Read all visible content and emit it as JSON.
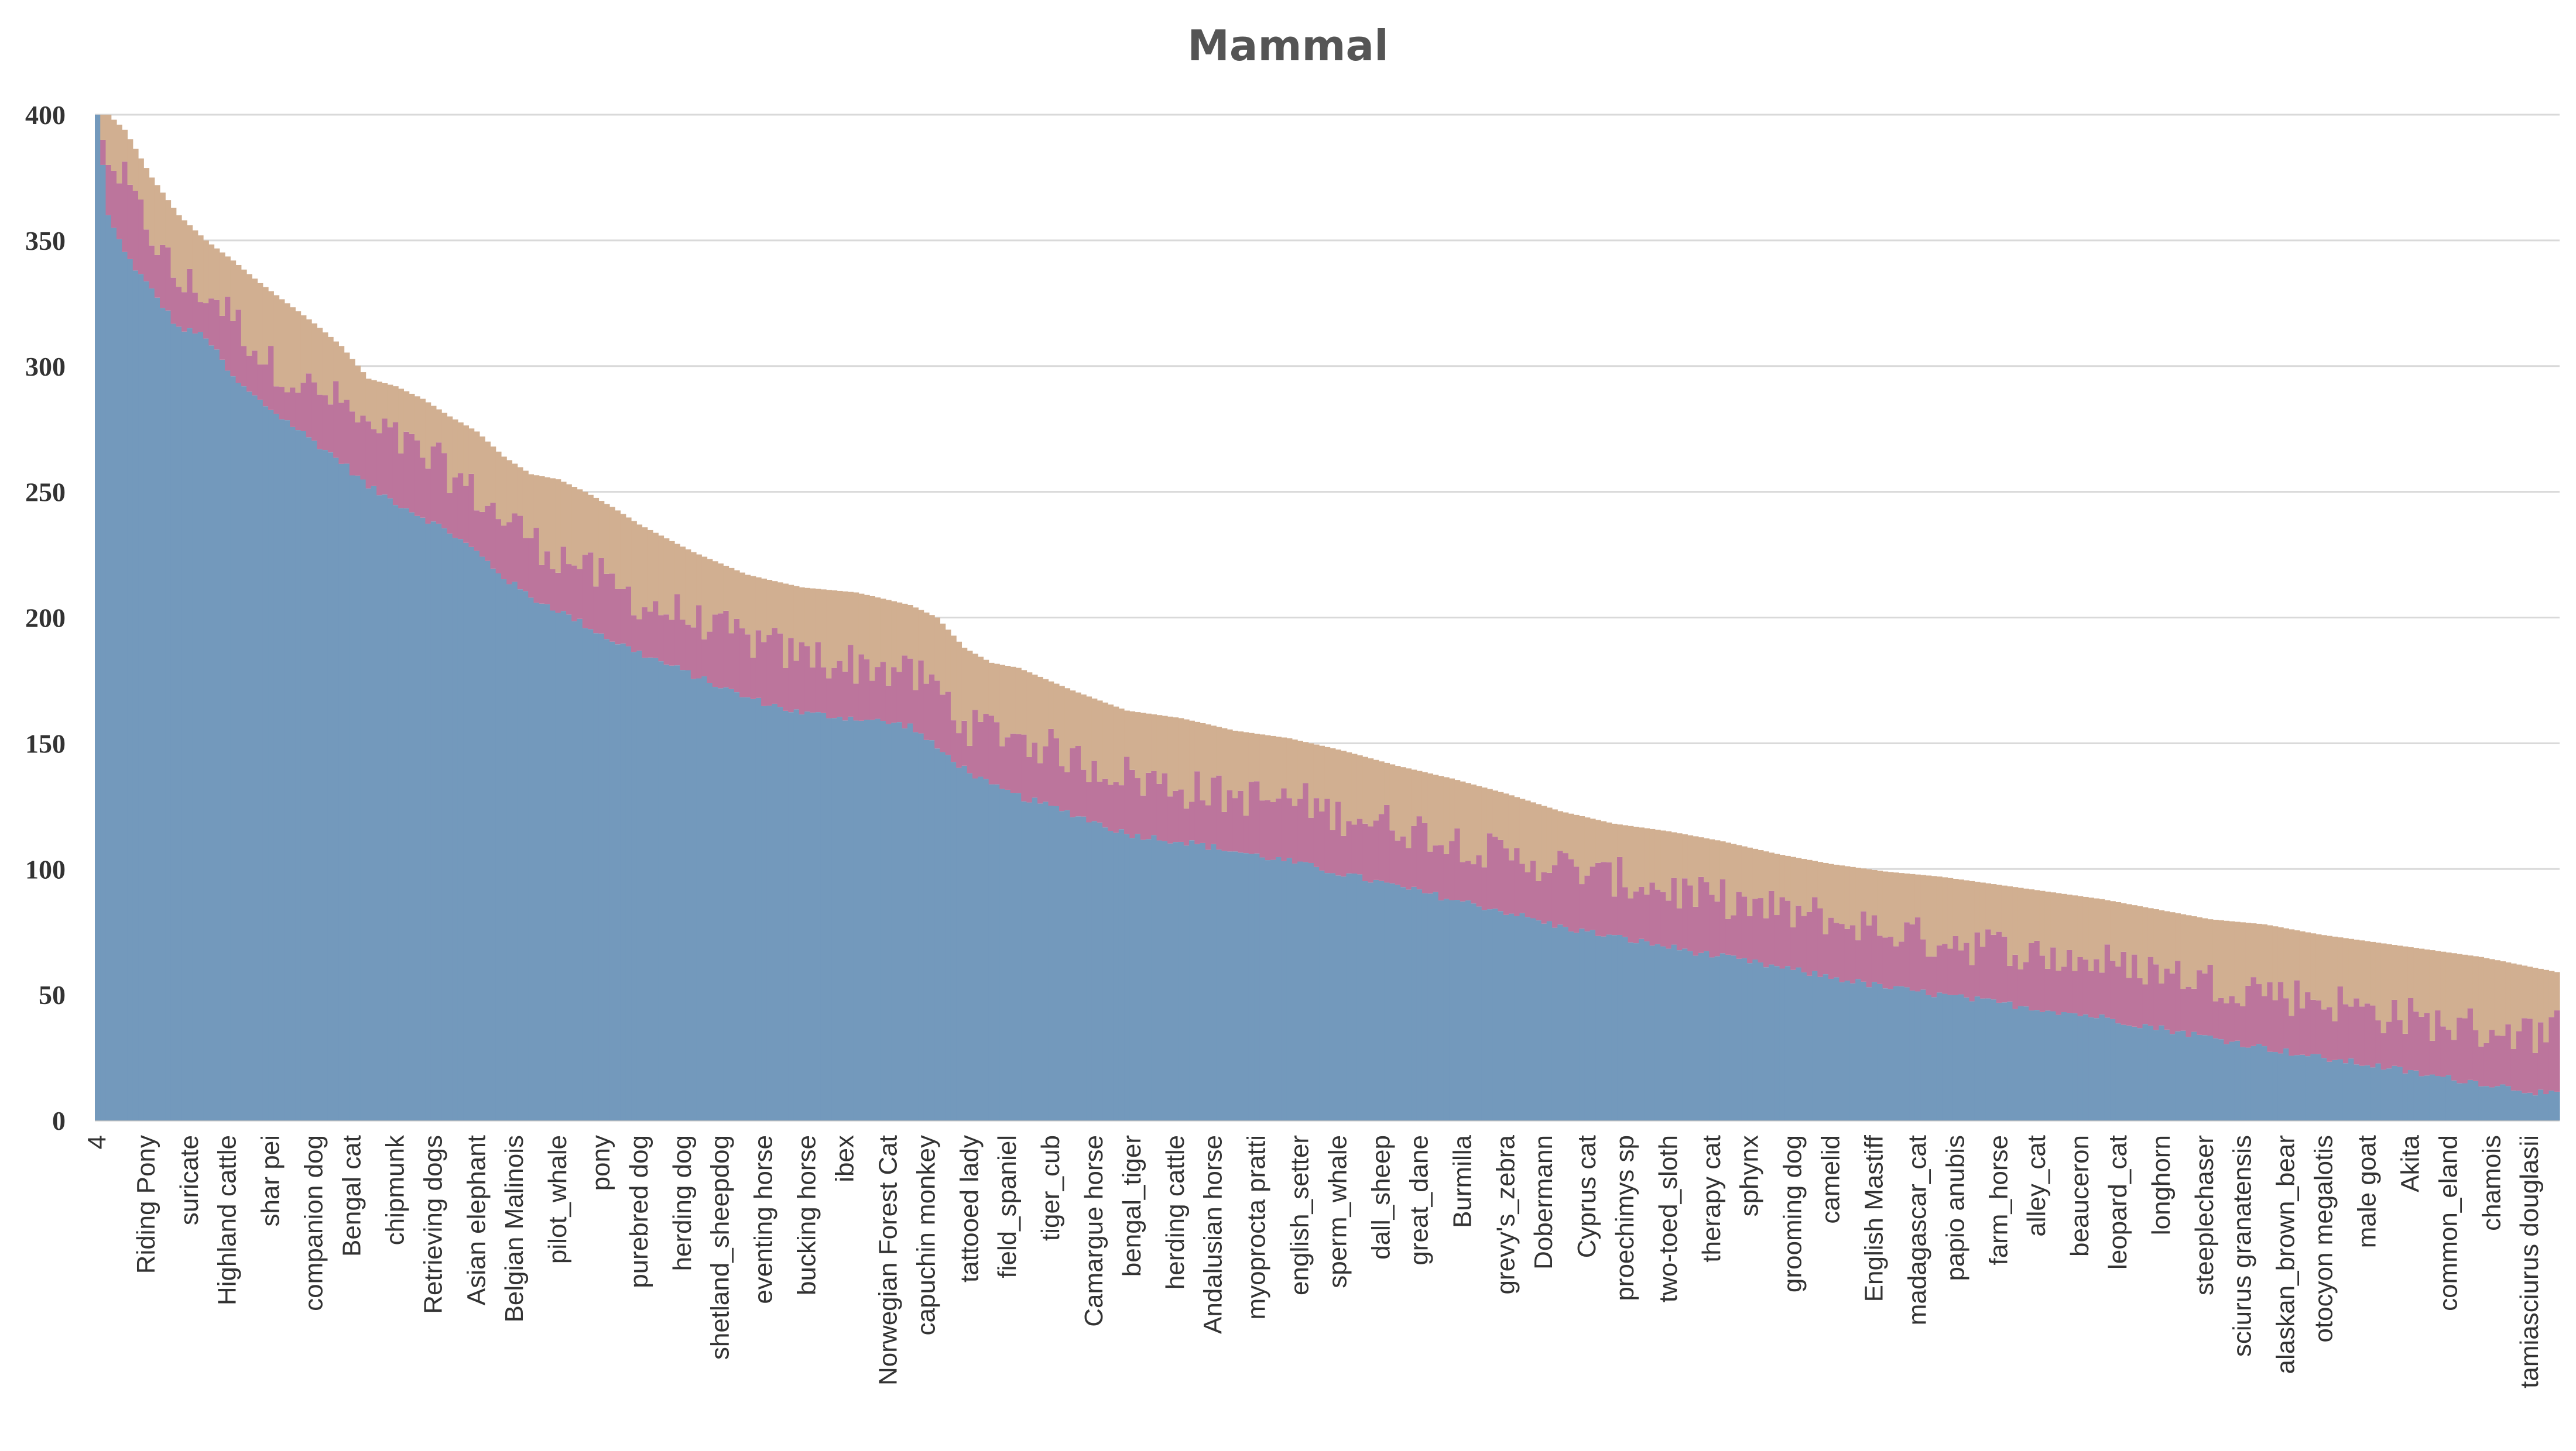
{
  "chart_data": {
    "type": "bar",
    "stacked": true,
    "title": "Mammal",
    "xlabel": "",
    "ylabel": "",
    "ylim": [
      0,
      400
    ],
    "yticks": [
      0,
      50,
      100,
      150,
      200,
      250,
      300,
      350,
      400
    ],
    "grid": true,
    "legend": "none",
    "series_colors": [
      "#7399BC",
      "#BC759C",
      "#D1AF91"
    ],
    "category_count": 455,
    "visible_labels": [
      {
        "index": 0,
        "label": "4"
      },
      {
        "index": 9,
        "label": "Riding Pony"
      },
      {
        "index": 17,
        "label": "suricate"
      },
      {
        "index": 24,
        "label": "Highland cattle"
      },
      {
        "index": 32,
        "label": "shar pei"
      },
      {
        "index": 40,
        "label": "companion dog"
      },
      {
        "index": 47,
        "label": "Bengal cat"
      },
      {
        "index": 55,
        "label": "chipmunk"
      },
      {
        "index": 62,
        "label": "Retrieving dogs"
      },
      {
        "index": 70,
        "label": "Asian elephant"
      },
      {
        "index": 77,
        "label": "Belgian Malinois"
      },
      {
        "index": 85,
        "label": "pilot_whale"
      },
      {
        "index": 93,
        "label": "pony"
      },
      {
        "index": 100,
        "label": "purebred dog"
      },
      {
        "index": 108,
        "label": "herding dog"
      },
      {
        "index": 115,
        "label": "shetland_sheepdog"
      },
      {
        "index": 123,
        "label": "eventing horse"
      },
      {
        "index": 131,
        "label": "bucking horse"
      },
      {
        "index": 138,
        "label": "ibex"
      },
      {
        "index": 146,
        "label": "Norwegian Forest Cat"
      },
      {
        "index": 153,
        "label": "capuchin monkey"
      },
      {
        "index": 161,
        "label": "tattooed lady"
      },
      {
        "index": 168,
        "label": "field_spaniel"
      },
      {
        "index": 176,
        "label": "tiger_cub"
      },
      {
        "index": 184,
        "label": "Camargue horse"
      },
      {
        "index": 191,
        "label": "bengal_tiger"
      },
      {
        "index": 199,
        "label": "herding cattle"
      },
      {
        "index": 206,
        "label": "Andalusian horse"
      },
      {
        "index": 214,
        "label": "myoprocta pratti"
      },
      {
        "index": 222,
        "label": "english_setter"
      },
      {
        "index": 229,
        "label": "sperm_whale"
      },
      {
        "index": 237,
        "label": "dall_sheep"
      },
      {
        "index": 244,
        "label": "great_dane"
      },
      {
        "index": 252,
        "label": "Burmilla"
      },
      {
        "index": 260,
        "label": "grevy's_zebra"
      },
      {
        "index": 267,
        "label": "Dobermann"
      },
      {
        "index": 275,
        "label": "Cyprus cat"
      },
      {
        "index": 282,
        "label": "proechimys sp"
      },
      {
        "index": 290,
        "label": "two-toed_sloth"
      },
      {
        "index": 298,
        "label": "therapy cat"
      },
      {
        "index": 305,
        "label": "sphynx"
      },
      {
        "index": 313,
        "label": "grooming dog"
      },
      {
        "index": 320,
        "label": "camelid"
      },
      {
        "index": 328,
        "label": "English Mastiff"
      },
      {
        "index": 336,
        "label": "madagascar_cat"
      },
      {
        "index": 343,
        "label": "papio anubis"
      },
      {
        "index": 351,
        "label": "farm_horse"
      },
      {
        "index": 358,
        "label": "alley_cat"
      },
      {
        "index": 366,
        "label": "beauceron"
      },
      {
        "index": 373,
        "label": "leopard_cat"
      },
      {
        "index": 381,
        "label": "longhorn"
      },
      {
        "index": 389,
        "label": "steeplechaser"
      },
      {
        "index": 396,
        "label": "sciurus granatensis"
      },
      {
        "index": 404,
        "label": "alaskan_brown_bear"
      },
      {
        "index": 411,
        "label": "otocyon megalotis"
      },
      {
        "index": 419,
        "label": "male goat"
      },
      {
        "index": 427,
        "label": "Akita"
      },
      {
        "index": 434,
        "label": "common_eland"
      },
      {
        "index": 442,
        "label": "chamois"
      },
      {
        "index": 449,
        "label": "tamiasciurus douglasii"
      }
    ],
    "profile": {
      "index": [
        0,
        2,
        5,
        10,
        15,
        20,
        25,
        30,
        40,
        45,
        50,
        55,
        60,
        65,
        70,
        75,
        80,
        85,
        90,
        95,
        100,
        110,
        120,
        130,
        140,
        150,
        155,
        160,
        165,
        170,
        180,
        190,
        200,
        210,
        220,
        230,
        240,
        250,
        260,
        270,
        280,
        290,
        300,
        310,
        320,
        330,
        340,
        350,
        360,
        370,
        380,
        390,
        400,
        410,
        420,
        430,
        440,
        454
      ],
      "total": [
        400,
        400,
        394,
        375,
        360,
        350,
        342,
        333,
        317,
        308,
        295,
        292,
        287,
        280,
        274,
        264,
        257,
        255,
        250,
        244,
        237,
        226,
        217,
        212,
        210,
        205,
        200,
        188,
        182,
        180,
        171,
        163,
        160,
        155,
        152,
        147,
        141,
        136,
        130,
        123,
        118,
        115,
        111,
        106,
        102,
        99,
        97,
        94,
        91,
        88,
        84,
        80,
        78,
        74,
        71,
        68,
        65,
        59
      ],
      "series1": [
        400,
        360,
        345,
        330,
        315,
        312,
        295,
        286,
        270,
        262,
        252,
        246,
        240,
        234,
        226,
        216,
        208,
        203,
        197,
        191,
        186,
        177,
        168,
        162,
        160,
        157,
        148,
        140,
        133,
        129,
        122,
        114,
        111,
        107,
        103,
        98,
        93,
        88,
        83,
        77,
        73,
        69,
        65,
        61,
        57,
        53,
        50,
        47,
        44,
        41,
        37,
        33,
        29,
        25,
        22,
        18,
        15,
        10
      ],
      "series2": [
        0,
        20,
        28,
        22,
        18,
        17,
        25,
        18,
        20,
        24,
        22,
        26,
        25,
        24,
        22,
        24,
        24,
        22,
        23,
        22,
        20,
        22,
        23,
        23,
        22,
        21,
        24,
        18,
        22,
        24,
        22,
        24,
        22,
        22,
        24,
        24,
        24,
        24,
        22,
        24,
        23,
        23,
        22,
        22,
        23,
        22,
        22,
        22,
        22,
        22,
        23,
        22,
        24,
        23,
        22,
        21,
        22,
        25
      ]
    }
  }
}
